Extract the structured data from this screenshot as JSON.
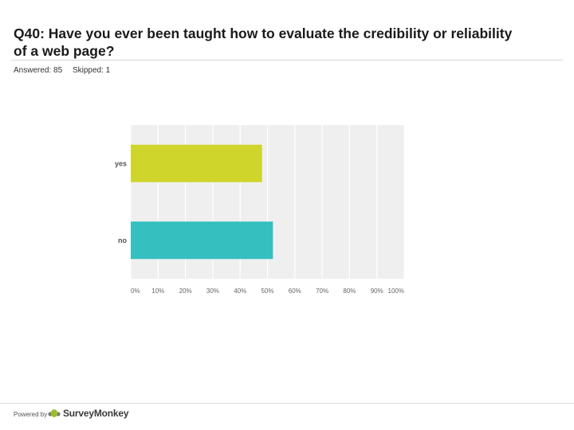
{
  "question": {
    "title": "Q40: Have you ever been taught how to evaluate the credibility or reliability of a web page?"
  },
  "stats": {
    "answered": "Answered: 85",
    "skipped": "Skipped: 1"
  },
  "chart_data": {
    "type": "bar",
    "orientation": "horizontal",
    "categories": [
      "yes",
      "no"
    ],
    "values": [
      48,
      52
    ],
    "xlim": [
      0,
      100
    ],
    "xticks": [
      "0%",
      "10%",
      "20%",
      "30%",
      "40%",
      "50%",
      "60%",
      "70%",
      "80%",
      "90%",
      "100%"
    ],
    "colors": [
      "#cfd52b",
      "#35bfbf"
    ],
    "grid": true,
    "plot_background": "#efefef"
  },
  "footer": {
    "powered_by": "Powered by",
    "brand": "SurveyMonkey"
  },
  "icons": {
    "brand_logo": "surveymonkey-logo-icon"
  }
}
